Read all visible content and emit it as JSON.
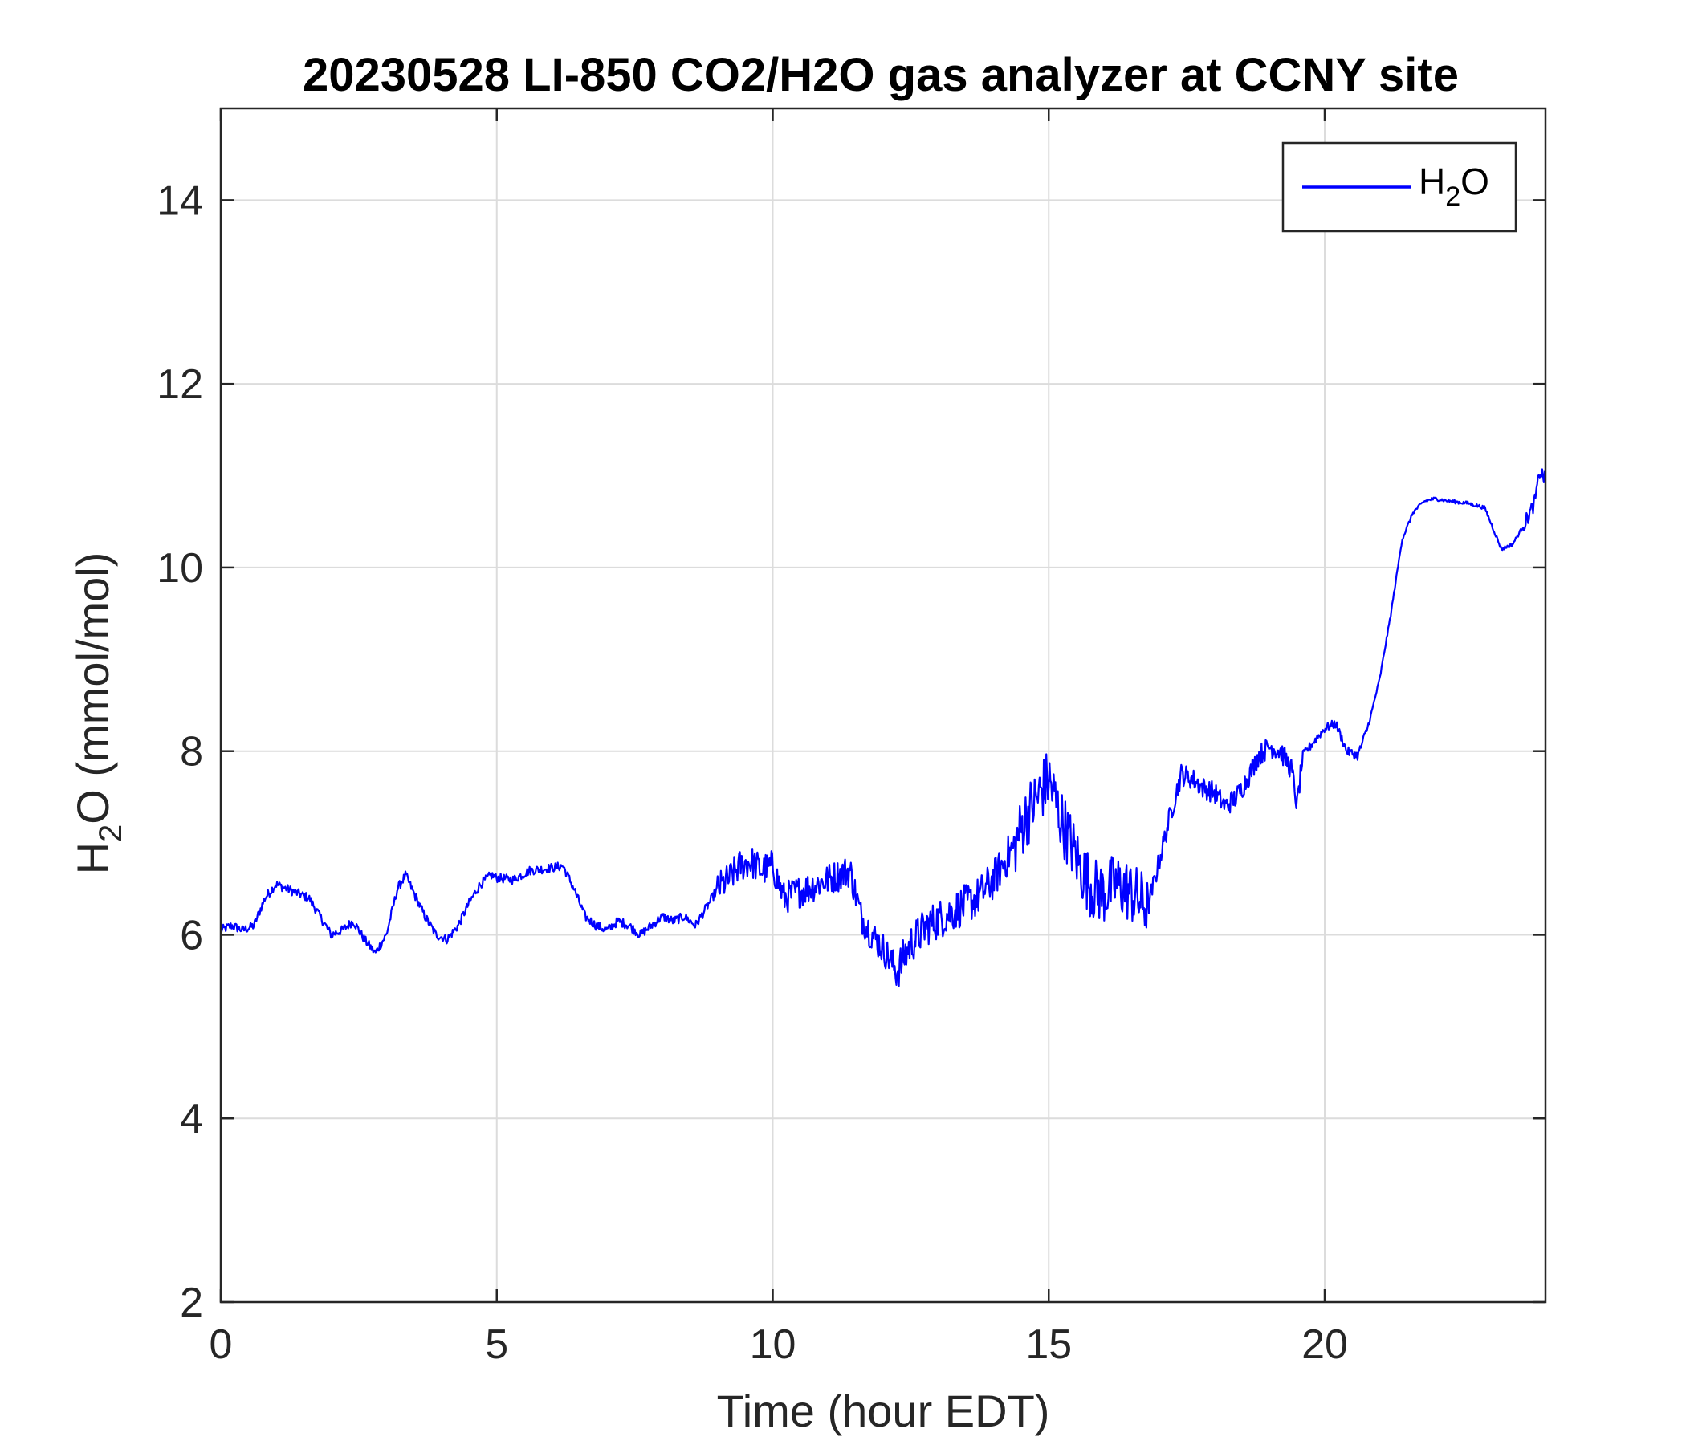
{
  "chart_data": {
    "type": "line",
    "title": "20230528 LI-850 CO2/H2O gas analyzer at CCNY site",
    "xlabel": "Time (hour EDT)",
    "ylabel": {
      "main": "H",
      "sub": "2",
      "rest": "O (mmol/mol)"
    },
    "xlim": [
      0,
      24
    ],
    "ylim": [
      2,
      15
    ],
    "xticks": [
      0,
      5,
      10,
      15,
      20
    ],
    "yticks": [
      2,
      4,
      6,
      8,
      10,
      12,
      14
    ],
    "grid": true,
    "legend_position": "top-right",
    "legend": {
      "main": "H",
      "sub": "2",
      "rest": "O"
    },
    "series": [
      {
        "name": "H2O",
        "color": "#0000ff",
        "x": [
          0.0,
          0.2,
          0.4,
          0.6,
          0.8,
          1.0,
          1.2,
          1.4,
          1.6,
          1.8,
          2.0,
          2.2,
          2.4,
          2.6,
          2.8,
          3.0,
          3.2,
          3.35,
          3.5,
          3.7,
          3.9,
          4.1,
          4.3,
          4.5,
          4.7,
          4.9,
          5.0,
          5.3,
          5.6,
          5.9,
          6.2,
          6.4,
          6.6,
          6.8,
          7.0,
          7.2,
          7.4,
          7.6,
          7.8,
          8.0,
          8.2,
          8.4,
          8.6,
          8.8,
          9.0,
          9.2,
          9.4,
          9.6,
          9.8,
          10.0,
          10.2,
          10.4,
          10.6,
          10.8,
          11.0,
          11.2,
          11.4,
          11.6,
          11.8,
          12.0,
          12.25,
          12.5,
          12.8,
          13.1,
          13.4,
          13.7,
          14.0,
          14.2,
          14.4,
          14.6,
          14.8,
          15.0,
          15.2,
          15.4,
          15.6,
          15.8,
          16.0,
          16.2,
          16.4,
          16.6,
          16.8,
          17.0,
          17.2,
          17.4,
          17.6,
          17.8,
          18.0,
          18.2,
          18.4,
          18.6,
          18.8,
          19.0,
          19.2,
          19.4,
          19.5,
          19.6,
          19.8,
          20.0,
          20.2,
          20.4,
          20.6,
          20.8,
          21.0,
          21.2,
          21.4,
          21.6,
          21.8,
          22.0,
          22.3,
          22.6,
          22.9,
          23.2,
          23.4,
          23.6,
          23.8,
          23.9,
          24.0
        ],
        "values": [
          6.05,
          6.1,
          6.05,
          6.1,
          6.4,
          6.55,
          6.5,
          6.45,
          6.4,
          6.2,
          6.0,
          6.05,
          6.15,
          5.95,
          5.8,
          6.0,
          6.5,
          6.65,
          6.45,
          6.2,
          6.0,
          5.95,
          6.1,
          6.35,
          6.55,
          6.65,
          6.62,
          6.6,
          6.7,
          6.72,
          6.75,
          6.5,
          6.2,
          6.1,
          6.05,
          6.15,
          6.1,
          6.0,
          6.1,
          6.2,
          6.15,
          6.2,
          6.1,
          6.3,
          6.5,
          6.6,
          6.75,
          6.8,
          6.7,
          6.75,
          6.4,
          6.45,
          6.5,
          6.55,
          6.6,
          6.65,
          6.7,
          6.2,
          6.0,
          5.85,
          5.6,
          5.9,
          6.1,
          6.2,
          6.3,
          6.4,
          6.6,
          6.8,
          7.0,
          7.3,
          7.5,
          7.7,
          7.3,
          7.0,
          6.7,
          6.5,
          6.45,
          6.55,
          6.5,
          6.4,
          6.3,
          6.8,
          7.3,
          7.75,
          7.7,
          7.6,
          7.55,
          7.4,
          7.5,
          7.7,
          7.95,
          8.05,
          8.0,
          7.8,
          7.4,
          7.95,
          8.1,
          8.25,
          8.3,
          8.0,
          7.95,
          8.3,
          8.8,
          9.5,
          10.3,
          10.6,
          10.72,
          10.75,
          10.72,
          10.7,
          10.65,
          10.2,
          10.25,
          10.45,
          10.7,
          11.05,
          10.95
        ]
      }
    ]
  }
}
